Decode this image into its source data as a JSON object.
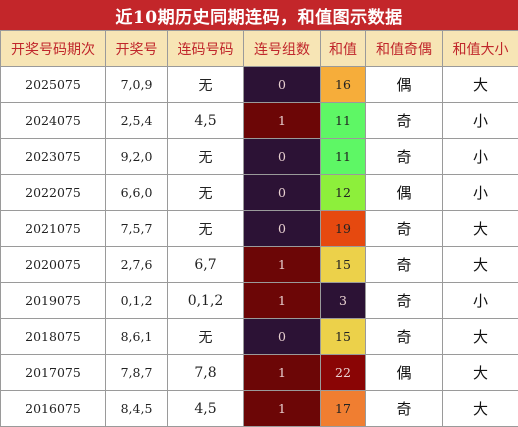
{
  "title": "近10期历史同期连码，和值图示数据",
  "headers": [
    "开奖号码期次",
    "开奖号",
    "连码号码",
    "连号组数",
    "和值",
    "和值奇偶",
    "和值大小"
  ],
  "colors": {
    "title_bg": "#c3262a",
    "header_bg": "#f7e5b5",
    "header_text": "#c0262b",
    "group_zero": "#2c1235",
    "group_one": "#6c0606"
  },
  "rows": [
    {
      "period": "2025075",
      "numbers": "7,0,9",
      "lianma": "无",
      "groups": "0",
      "sum": "16",
      "sum_color": "#f6ad3a",
      "parity": "偶",
      "size": "大"
    },
    {
      "period": "2024075",
      "numbers": "2,5,4",
      "lianma": "4,5",
      "groups": "1",
      "sum": "11",
      "sum_color": "#5ef765",
      "parity": "奇",
      "size": "小"
    },
    {
      "period": "2023075",
      "numbers": "9,2,0",
      "lianma": "无",
      "groups": "0",
      "sum": "11",
      "sum_color": "#5ef765",
      "parity": "奇",
      "size": "小"
    },
    {
      "period": "2022075",
      "numbers": "6,6,0",
      "lianma": "无",
      "groups": "0",
      "sum": "12",
      "sum_color": "#8def3b",
      "parity": "偶",
      "size": "小"
    },
    {
      "period": "2021075",
      "numbers": "7,5,7",
      "lianma": "无",
      "groups": "0",
      "sum": "19",
      "sum_color": "#e6490f",
      "parity": "奇",
      "size": "大"
    },
    {
      "period": "2020075",
      "numbers": "2,7,6",
      "lianma": "6,7",
      "groups": "1",
      "sum": "15",
      "sum_color": "#ecd14a",
      "parity": "奇",
      "size": "大"
    },
    {
      "period": "2019075",
      "numbers": "0,1,2",
      "lianma": "0,1,2",
      "groups": "1",
      "sum": "3",
      "sum_color": "#2c1235",
      "parity": "奇",
      "size": "小"
    },
    {
      "period": "2018075",
      "numbers": "8,6,1",
      "lianma": "无",
      "groups": "0",
      "sum": "15",
      "sum_color": "#ecd14a",
      "parity": "奇",
      "size": "大"
    },
    {
      "period": "2017075",
      "numbers": "7,8,7",
      "lianma": "7,8",
      "groups": "1",
      "sum": "22",
      "sum_color": "#8a0505",
      "parity": "偶",
      "size": "大"
    },
    {
      "period": "2016075",
      "numbers": "8,4,5",
      "lianma": "4,5",
      "groups": "1",
      "sum": "17",
      "sum_color": "#f07e31",
      "parity": "奇",
      "size": "大"
    }
  ]
}
